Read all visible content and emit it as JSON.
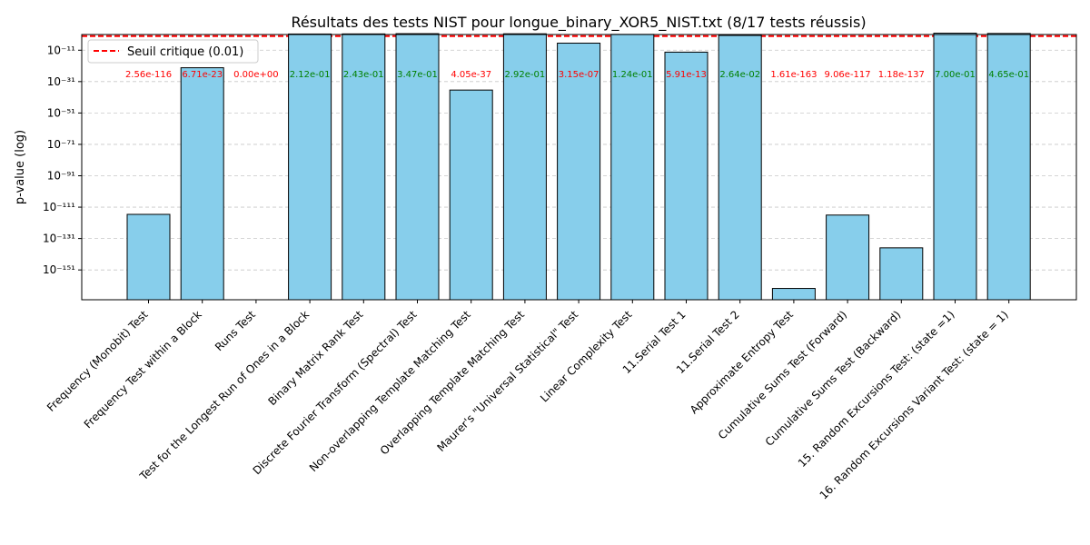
{
  "chart_data": {
    "type": "bar",
    "title": "Résultats des tests NIST pour longue_binary_XOR5_NIST.txt (8/17 tests réussis)",
    "xlabel": "",
    "ylabel": "p-value (log)",
    "yscale": "log",
    "ylim_log10": [
      -170,
      -1
    ],
    "yticks": [
      {
        "exp": -11,
        "label": "10⁻¹¹"
      },
      {
        "exp": -31,
        "label": "10⁻³¹"
      },
      {
        "exp": -51,
        "label": "10⁻⁵¹"
      },
      {
        "exp": -71,
        "label": "10⁻⁷¹"
      },
      {
        "exp": -91,
        "label": "10⁻⁹¹"
      },
      {
        "exp": -111,
        "label": "10⁻¹¹¹"
      },
      {
        "exp": -131,
        "label": "10⁻¹³¹"
      },
      {
        "exp": -151,
        "label": "10⁻¹⁵¹"
      }
    ],
    "grid": "y-dashed",
    "bar_color": "#87ceeb",
    "pass_color": "#008000",
    "fail_color": "#ff0000",
    "threshold": {
      "value": 0.01,
      "label": "Seuil critique (0.01)",
      "color": "#ff0000"
    },
    "legend_position": "top-left",
    "categories": [
      "Frequency (Monobit) Test",
      "Frequency Test within a Block",
      "Runs Test",
      "Test for the Longest Run of Ones in a Block",
      "Binary Matrix Rank Test",
      "Discrete Fourier Transform (Spectral) Test",
      "Non-overlapping Template Matching Test",
      "Overlapping Template Matching Test",
      "Maurer's \"Universal Statistical\" Test",
      "Linear Complexity Test",
      "11.Serial Test 1",
      "11.Serial Test 2",
      "Approximate Entropy Test",
      "Cumulative Sums Test (Forward)",
      "Cumulative Sums Test (Backward)",
      "15. Random Excursions Test: (state =1)",
      "16. Random Excursions Variant Test: (state = 1)"
    ],
    "values": [
      2.56e-116,
      6.71e-23,
      0,
      0.212,
      0.243,
      0.347,
      4.05e-37,
      0.292,
      3.15e-07,
      0.124,
      5.91e-13,
      0.0264,
      1.61e-163,
      9.06e-117,
      1.18e-137,
      0.7,
      0.465
    ],
    "value_labels": [
      "2.56e-116",
      "6.71e-23",
      "0.00e+00",
      "2.12e-01",
      "2.43e-01",
      "3.47e-01",
      "4.05e-37",
      "2.92e-01",
      "3.15e-07",
      "1.24e-01",
      "5.91e-13",
      "2.64e-02",
      "1.61e-163",
      "9.06e-117",
      "1.18e-137",
      "7.00e-01",
      "4.65e-01"
    ]
  }
}
